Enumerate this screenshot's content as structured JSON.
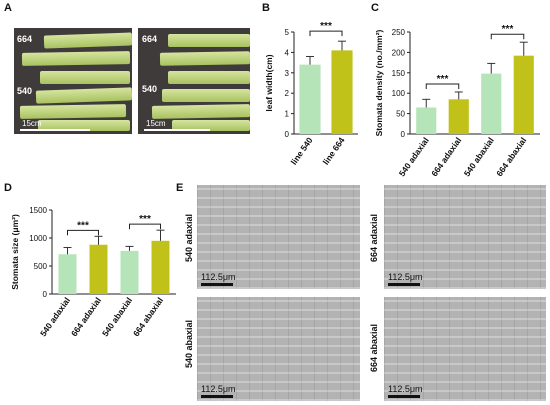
{
  "panels": {
    "A": {
      "letter": "A",
      "left_photo": {
        "label_top": "664",
        "label_bottom": "540",
        "scale": "15cm"
      },
      "right_photo": {
        "label_top": "664",
        "label_bottom": "540",
        "scale": "15cm"
      }
    },
    "B": {
      "letter": "B"
    },
    "C": {
      "letter": "C"
    },
    "D": {
      "letter": "D"
    },
    "E": {
      "letter": "E",
      "images": [
        {
          "label": "540 adaxial",
          "scale": "112.5μm"
        },
        {
          "label": "664 adaxial",
          "scale": "112.5μm"
        },
        {
          "label": "540 abaxial",
          "scale": "112.5μm"
        },
        {
          "label": "664 abaxial",
          "scale": "112.5μm"
        }
      ]
    }
  },
  "chart_data": [
    {
      "panel": "B",
      "type": "bar",
      "categories": [
        "line 540",
        "line 664"
      ],
      "values": [
        3.4,
        4.1
      ],
      "errors": [
        0.4,
        0.45
      ],
      "colors": [
        "#b5e4b9",
        "#c0c21a"
      ],
      "ylabel": "leaf width(cm)",
      "ylim": [
        0,
        5
      ],
      "yticks": [
        "0",
        "1",
        "2",
        "3",
        "4",
        "5"
      ],
      "significance": [
        {
          "from": 0,
          "to": 1,
          "label": "***"
        }
      ]
    },
    {
      "panel": "C",
      "type": "bar",
      "categories": [
        "540 adaxial",
        "664 adaxial",
        "540 abaxial",
        "664 abaxial"
      ],
      "values": [
        65,
        85,
        148,
        192
      ],
      "errors": [
        20,
        18,
        25,
        33
      ],
      "colors": [
        "#b5e4b9",
        "#c0c21a",
        "#b5e4b9",
        "#c0c21a"
      ],
      "ylabel": "Stomata density (no./mm²)",
      "ylim": [
        0,
        250
      ],
      "yticks": [
        "0",
        "50",
        "100",
        "150",
        "200",
        "250"
      ],
      "significance": [
        {
          "from": 0,
          "to": 1,
          "label": "***"
        },
        {
          "from": 2,
          "to": 3,
          "label": "***"
        }
      ]
    },
    {
      "panel": "D",
      "type": "bar",
      "categories": [
        "540 adaxial",
        "664 adaxial",
        "540 abaxial",
        "664 abaxial"
      ],
      "values": [
        710,
        880,
        770,
        950
      ],
      "errors": [
        120,
        150,
        80,
        190
      ],
      "colors": [
        "#b5e4b9",
        "#c0c21a",
        "#b5e4b9",
        "#c0c21a"
      ],
      "ylabel": "Stomata size (μm²)",
      "ylim": [
        0,
        1500
      ],
      "yticks": [
        "0",
        "500",
        "1000",
        "1500"
      ],
      "significance": [
        {
          "from": 0,
          "to": 1,
          "label": "***"
        },
        {
          "from": 2,
          "to": 3,
          "label": "***"
        }
      ]
    }
  ]
}
